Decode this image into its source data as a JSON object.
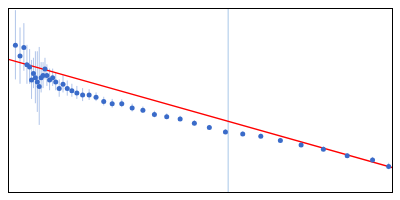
{
  "chart_data": {
    "type": "scatter",
    "xlim": [
      0.0,
      1.0
    ],
    "ylim": [
      -0.55,
      0.3
    ],
    "tick_labels": false,
    "grid": false,
    "series": [
      {
        "type": "scatter",
        "color": "#3a6bc9",
        "x": [
          0.018,
          0.03,
          0.04,
          0.048,
          0.055,
          0.06,
          0.065,
          0.07,
          0.075,
          0.08,
          0.085,
          0.09,
          0.095,
          0.1,
          0.107,
          0.115,
          0.123,
          0.132,
          0.142,
          0.153,
          0.165,
          0.178,
          0.193,
          0.21,
          0.228,
          0.248,
          0.27,
          0.295,
          0.322,
          0.35,
          0.38,
          0.412,
          0.447,
          0.484,
          0.523,
          0.565,
          0.61,
          0.657,
          0.708,
          0.762,
          0.82,
          0.882,
          0.948,
          0.99
        ],
        "values": [
          0.13,
          0.08,
          0.12,
          0.04,
          0.03,
          -0.03,
          0.0,
          -0.02,
          -0.04,
          -0.06,
          -0.02,
          -0.01,
          0.02,
          -0.01,
          -0.03,
          -0.02,
          -0.04,
          -0.07,
          -0.05,
          -0.07,
          -0.08,
          -0.09,
          -0.1,
          -0.1,
          -0.11,
          -0.13,
          -0.14,
          -0.14,
          -0.16,
          -0.17,
          -0.19,
          -0.2,
          -0.21,
          -0.23,
          -0.25,
          -0.27,
          -0.28,
          -0.29,
          -0.31,
          -0.33,
          -0.35,
          -0.38,
          -0.4,
          -0.43
        ],
        "yerr": [
          0.16,
          0.13,
          0.11,
          0.09,
          0.08,
          0.09,
          0.07,
          0.12,
          0.14,
          0.18,
          0.07,
          0.06,
          0.05,
          0.05,
          0.05,
          0.04,
          0.04,
          0.04,
          0.04,
          0.035,
          0.03,
          0.03,
          0.03,
          0.025,
          0.02,
          0.02,
          0.02,
          0.018,
          0.018,
          0.015,
          0.015,
          0.013,
          0.012,
          0.012,
          0.01,
          0.01,
          0.01,
          0.01,
          0.01,
          0.01,
          0.01,
          0.01,
          0.012,
          0.015
        ]
      },
      {
        "type": "line",
        "color": "#ff0000",
        "x": [
          0.0,
          1.0
        ],
        "values": [
          0.065,
          -0.435
        ]
      },
      {
        "type": "vline",
        "color": "#a8c8e8",
        "x": [
          0.572
        ]
      }
    ]
  }
}
